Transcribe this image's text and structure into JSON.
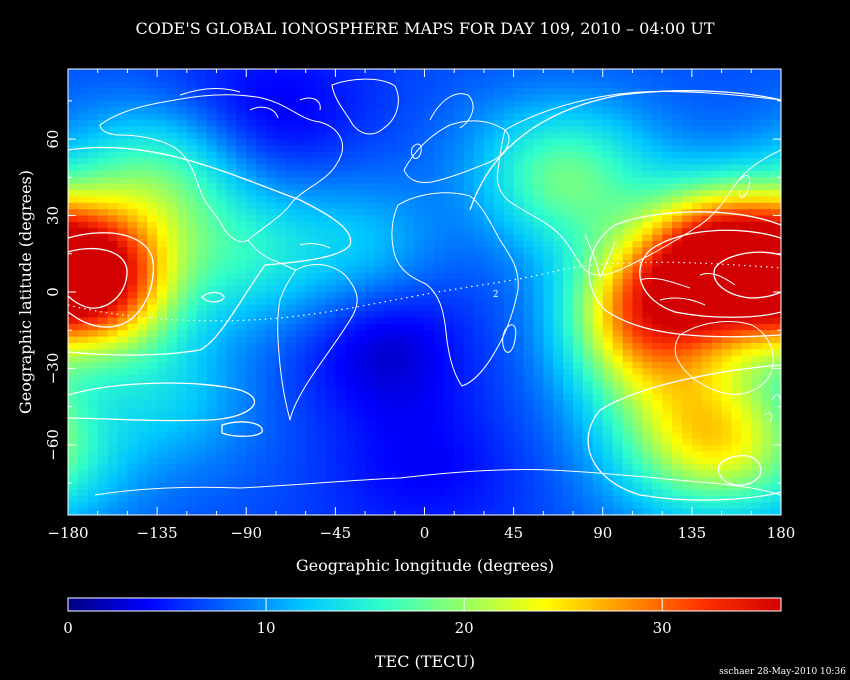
{
  "chart_data": {
    "type": "heatmap",
    "title": "CODE'S GLOBAL IONOSPHERE MAPS FOR DAY 109, 2010 – 04:00 UT",
    "xlabel": "Geographic longitude (degrees)",
    "ylabel": "Geographic latitude (degrees)",
    "xlim": [
      -180,
      180
    ],
    "ylim": [
      -87.5,
      87.5
    ],
    "x_ticks": [
      -180,
      -135,
      -90,
      -45,
      0,
      45,
      90,
      135,
      180
    ],
    "y_ticks": [
      -60,
      -30,
      0,
      30,
      60
    ],
    "colorbar": {
      "label": "TEC (TECU)",
      "range": [
        0,
        36
      ],
      "ticks": [
        0,
        10,
        20,
        30
      ],
      "colors": [
        "#00007f",
        "#0000ff",
        "#0064ff",
        "#00c8ff",
        "#32ffc8",
        "#96ff64",
        "#ffff00",
        "#ff9600",
        "#ff3200",
        "#d20000"
      ]
    },
    "tec_features": [
      {
        "lon": 150,
        "lat": 12,
        "tec": 36
      },
      {
        "lon": -165,
        "lat": 5,
        "tec": 34
      },
      {
        "lon": 110,
        "lat": -8,
        "tec": 26
      },
      {
        "lon": 70,
        "lat": 45,
        "tec": 18
      },
      {
        "lon": -135,
        "lat": 45,
        "tec": 16
      },
      {
        "lon": -90,
        "lat": 15,
        "tec": 14
      },
      {
        "lon": -30,
        "lat": 15,
        "tec": 12
      },
      {
        "lon": 150,
        "lat": -60,
        "tec": 22
      },
      {
        "lon": 120,
        "lat": -40,
        "tec": 14
      },
      {
        "lon": -130,
        "lat": -42,
        "tec": 12
      },
      {
        "lon": -20,
        "lat": -20,
        "tec": 2
      },
      {
        "lon": -80,
        "lat": 70,
        "tec": 3
      },
      {
        "lon": 0,
        "lat": -70,
        "tec": 4
      }
    ],
    "background_tec": 7,
    "contour_labels": [
      {
        "lon": 36,
        "lat": -2,
        "text": "2"
      }
    ]
  },
  "footer": {
    "credit": "sschaer 28-May-2010 10:36"
  }
}
